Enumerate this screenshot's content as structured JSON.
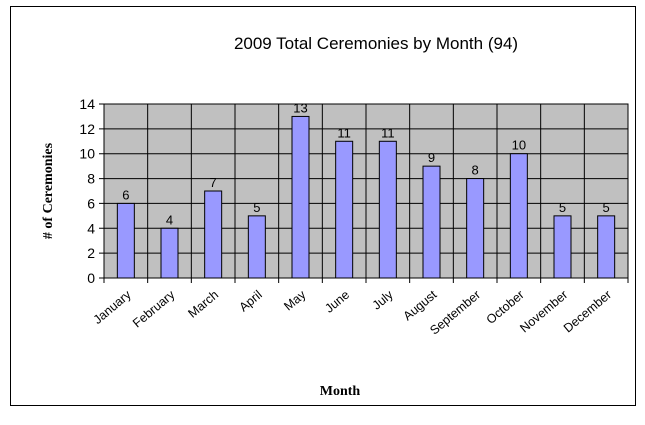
{
  "chart_data": {
    "type": "bar",
    "title": "2009 Total Ceremonies by Month (94)",
    "xlabel": "Month",
    "ylabel": "# of Ceremonies",
    "ylim": [
      0,
      14
    ],
    "yticks": [
      "0",
      "2",
      "4",
      "6",
      "8",
      "10",
      "12",
      "14"
    ],
    "categories": [
      "January",
      "February",
      "March",
      "April",
      "May",
      "June",
      "July",
      "August",
      "September",
      "October",
      "November",
      "December"
    ],
    "values": [
      6,
      4,
      7,
      5,
      13,
      11,
      11,
      9,
      8,
      10,
      5,
      5
    ],
    "data_labels": [
      "6",
      "4",
      "7",
      "5",
      "13",
      "11",
      "11",
      "9",
      "8",
      "10",
      "5",
      "5"
    ],
    "grid": true,
    "legend": "none",
    "colors": {
      "bar_fill": "#9999ff",
      "bar_stroke": "#000000",
      "plot_background": "#c0c0c0",
      "gridline": "#000000"
    }
  }
}
